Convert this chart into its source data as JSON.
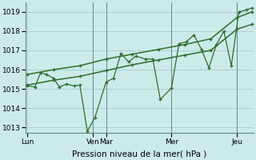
{
  "background_color": "#cdeaea",
  "grid_color": "#aacccc",
  "line_color": "#2d6e2d",
  "fig_bg": "#cdeaea",
  "x_ticks_labels": [
    "Lun",
    "Ven",
    "Mar",
    "Mer",
    "Jeu"
  ],
  "x_ticks_pos": [
    0,
    35,
    42,
    77,
    112
  ],
  "jagged_x": [
    0,
    4,
    7,
    10,
    14,
    17,
    21,
    25,
    28,
    32,
    36,
    42,
    46,
    50,
    54,
    58,
    63,
    67,
    71,
    77,
    81,
    85,
    89,
    93,
    97,
    101,
    105,
    109,
    113,
    117,
    120
  ],
  "jagged_y": [
    1015.15,
    1015.1,
    1015.85,
    1015.75,
    1015.55,
    1015.1,
    1015.25,
    1015.15,
    1015.2,
    1012.8,
    1013.5,
    1015.35,
    1015.55,
    1016.85,
    1016.4,
    1016.7,
    1016.55,
    1016.55,
    1014.45,
    1015.05,
    1017.35,
    1017.45,
    1017.8,
    1017.05,
    1016.1,
    1017.3,
    1018.0,
    1016.2,
    1019.0,
    1019.1,
    1019.2
  ],
  "smooth1_x": [
    0,
    14,
    28,
    42,
    56,
    70,
    84,
    98,
    112,
    120
  ],
  "smooth1_y": [
    1015.75,
    1016.0,
    1016.2,
    1016.55,
    1016.8,
    1017.05,
    1017.3,
    1017.6,
    1018.7,
    1019.0
  ],
  "smooth2_x": [
    0,
    14,
    28,
    42,
    56,
    70,
    84,
    98,
    112,
    120
  ],
  "smooth2_y": [
    1015.2,
    1015.45,
    1015.65,
    1015.95,
    1016.25,
    1016.5,
    1016.75,
    1017.0,
    1018.1,
    1018.35
  ],
  "vlines_x": [
    35,
    42,
    77,
    112
  ],
  "ylim": [
    1012.7,
    1019.5
  ],
  "xlim": [
    -1,
    121
  ],
  "yticks": [
    1013,
    1014,
    1015,
    1016,
    1017,
    1018,
    1019
  ],
  "xlabel": "Pression niveau de la mer( hPa )",
  "xlabel_fontsize": 7.5
}
